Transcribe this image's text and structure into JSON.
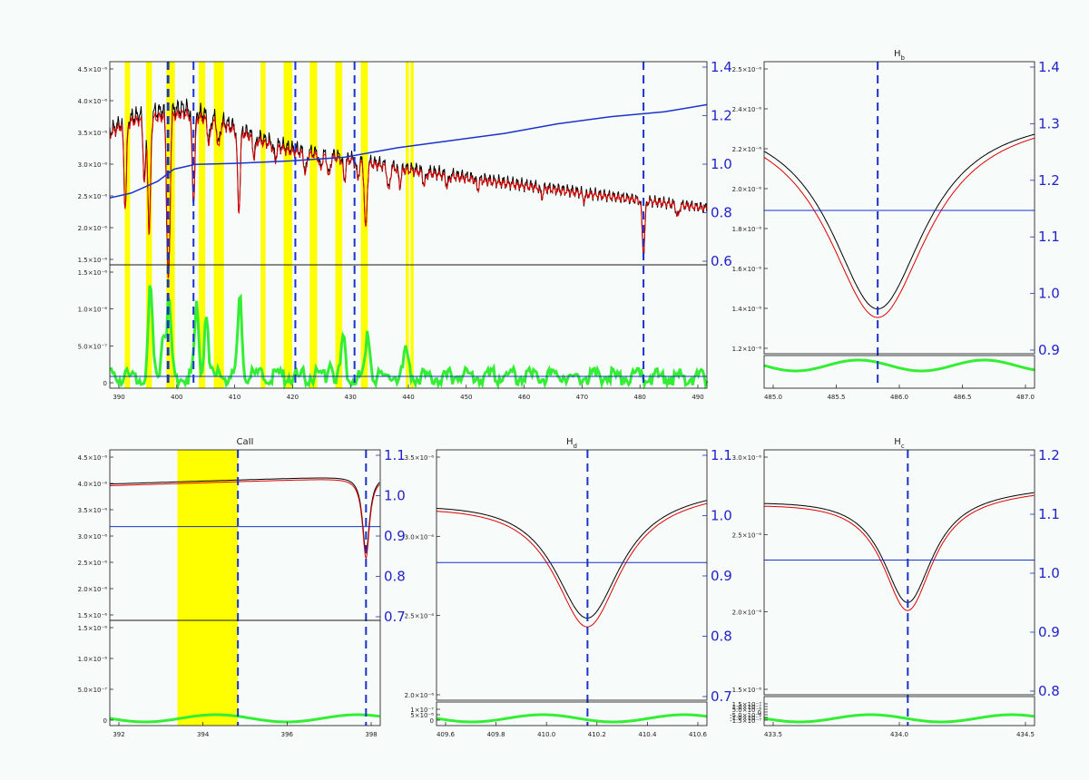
{
  "colors": {
    "observed": "#000000",
    "model": "#e00000",
    "ratio": "#1a33cc",
    "residual": "#33ee33",
    "mask": "#ffff00",
    "line_marker": "#1a33cc"
  },
  "chart_data": [
    {
      "id": "full",
      "type": "line",
      "title": "",
      "xlim": [
        386,
        498
      ],
      "ylim_top": [
        1.2e-06,
        4.7e-06
      ],
      "ylim_right": [
        0.55,
        1.4
      ],
      "ylim_bottom": [
        -2e-07,
        1.9e-06
      ],
      "x_ticks": [
        "390",
        "400",
        "410",
        "420",
        "430",
        "440",
        "450",
        "460",
        "470",
        "480",
        "490"
      ],
      "y_ticks_top": [
        "1.5×10⁻⁶",
        "2.0×10⁻⁶",
        "2.5×10⁻⁶",
        "3.0×10⁻⁶",
        "3.5×10⁻⁶",
        "4.0×10⁻⁶",
        "4.5×10⁻⁶"
      ],
      "y_ticks_bottom": [
        "0",
        "5.0×10⁻⁷",
        "1.0×10⁻⁶",
        "1.5×10⁻⁶"
      ],
      "y_ticks_right": [
        "0.6",
        "0.8",
        "1.0",
        "1.2",
        "1.4"
      ],
      "mask_regions": [
        [
          388.8,
          389.8
        ],
        [
          392.8,
          393.9
        ],
        [
          396.6,
          398.2
        ],
        [
          402.7,
          403.9
        ],
        [
          405.5,
          407.4
        ],
        [
          414.3,
          415.2
        ],
        [
          418.6,
          420.2
        ],
        [
          423.5,
          424.9
        ],
        [
          428.3,
          429.6
        ],
        [
          433.1,
          434.4
        ],
        [
          441.5,
          442.1
        ],
        [
          442.4,
          443.0
        ]
      ],
      "marker_lines": [
        396.85,
        397.0,
        401.7,
        420.8,
        431.9,
        486.1
      ],
      "series": [
        {
          "x": [
            386,
            389,
            392,
            396,
            400,
            405,
            410,
            415,
            420,
            430,
            440,
            450,
            460,
            470,
            480,
            490,
            498
          ],
          "y": [
            3.5e-06,
            3.7e-06,
            3.8e-06,
            3.85e-06,
            3.9e-06,
            3.75e-06,
            3.55e-06,
            3.35e-06,
            3.2e-06,
            3.05e-06,
            2.88e-06,
            2.75e-06,
            2.62e-06,
            2.5e-06,
            2.38e-06,
            2.27e-06,
            2.18e-06
          ]
        },
        {
          "x": [
            386,
            389,
            392,
            396,
            400,
            405,
            410,
            415,
            420,
            430,
            440,
            450,
            460,
            470,
            480,
            490,
            498
          ],
          "y": [
            3.45e-06,
            3.65e-06,
            3.7e-06,
            3.75e-06,
            3.8e-06,
            3.68e-06,
            3.5e-06,
            3.3e-06,
            3.15e-06,
            3.02e-06,
            2.85e-06,
            2.72e-06,
            2.6e-06,
            2.48e-06,
            2.37e-06,
            2.26e-06,
            2.17e-06
          ]
        },
        {
          "x": [
            386,
            390,
            395,
            398,
            402,
            410,
            420,
            430,
            440,
            450,
            460,
            470,
            480,
            490,
            498
          ],
          "y": [
            0.83,
            0.85,
            0.9,
            0.95,
            0.97,
            0.975,
            0.985,
            1.0,
            1.04,
            1.07,
            1.1,
            1.14,
            1.17,
            1.19,
            1.22
          ]
        }
      ],
      "line_depths": [
        [
          388.9,
          0.4
        ],
        [
          392.5,
          0.3
        ],
        [
          393.4,
          0.55
        ],
        [
          396.9,
          0.6
        ],
        [
          397.1,
          0.5
        ],
        [
          401.7,
          0.4
        ],
        [
          404.6,
          0.12
        ],
        [
          406.4,
          0.12
        ],
        [
          410.2,
          0.4
        ],
        [
          413.1,
          0.1
        ],
        [
          417.0,
          0.08
        ],
        [
          422.7,
          0.12
        ],
        [
          425.5,
          0.08
        ],
        [
          427.1,
          0.12
        ],
        [
          430.0,
          0.12
        ],
        [
          432.5,
          0.1
        ],
        [
          434.0,
          0.4
        ],
        [
          438.3,
          0.15
        ],
        [
          440.4,
          0.1
        ],
        [
          445.0,
          0.08
        ],
        [
          449.3,
          0.07
        ],
        [
          455.0,
          0.06
        ],
        [
          467.0,
          0.06
        ],
        [
          475.0,
          0.05
        ],
        [
          486.1,
          0.4
        ],
        [
          492.5,
          0.1
        ]
      ],
      "residual_spikes": [
        [
          393.6,
          1.5e-06
        ],
        [
          396.0,
          8e-07
        ],
        [
          397.1,
          1.3e-06
        ],
        [
          402.3,
          1.2e-06
        ],
        [
          404.1,
          1.1e-06
        ],
        [
          410.4,
          1.3e-06
        ],
        [
          427.3,
          3e-07
        ],
        [
          429.8,
          7e-07
        ],
        [
          434.4,
          7e-07
        ],
        [
          441.5,
          4e-07
        ]
      ]
    },
    {
      "id": "hb",
      "type": "line",
      "title": "H_b",
      "xlim": [
        485.5,
        487.0
      ],
      "ylim_top": [
        1.18e-06,
        2.55e-06
      ],
      "ylim_right": [
        0.88,
        1.42
      ],
      "x_ticks": [
        "485.0",
        "485.5",
        "486.0",
        "486.5",
        "487.0"
      ],
      "y_ticks_top": [
        "1.2×10⁻⁶",
        "1.4×10⁻⁶",
        "1.6×10⁻⁶",
        "1.8×10⁻⁶",
        "2.0×10⁻⁶",
        "2.2×10⁻⁶",
        "2.4×10⁻⁶",
        "2.5×10⁻⁶"
      ],
      "y_ticks_right": [
        "0.9",
        "1.0",
        "1.1",
        "1.2",
        "1.3",
        "1.4"
      ],
      "center": 486.13,
      "observed": {
        "base": 2.32e-06,
        "depth": 9.3e-07,
        "width": 0.32
      },
      "model": {
        "base": 2.32e-06,
        "depth": 9.7e-07,
        "width": 0.34
      },
      "ratio_level": 1.145
    },
    {
      "id": "caii",
      "type": "line",
      "title": "CaII",
      "xlim": [
        389.8,
        397.4
      ],
      "ylim_top": [
        1.45e-06,
        4.6e-06
      ],
      "ylim_right": [
        0.7,
        1.1
      ],
      "ylim_bottom": [
        -2e-07,
        1.8e-06
      ],
      "x_ticks": [
        "392",
        "394",
        "396",
        "398"
      ],
      "y_ticks_top": [
        "1.5×10⁻⁶",
        "2.0×10⁻⁶",
        "2.5×10⁻⁶",
        "3.0×10⁻⁶",
        "3.5×10⁻⁶",
        "4.0×10⁻⁶",
        "4.5×10⁻⁶"
      ],
      "y_ticks_bottom": [
        "0",
        "5.0×10⁻⁷",
        "1.0×10⁻⁶",
        "1.5×10⁻⁶"
      ],
      "y_ticks_right": [
        "0.7",
        "0.8",
        "0.9",
        "1.0",
        "1.1"
      ],
      "mask_regions": [
        [
          391.7,
          393.4
        ]
      ],
      "marker_lines": [
        393.4,
        397.0
      ]
    },
    {
      "id": "hd",
      "type": "line",
      "title": "H_d",
      "xlim": [
        409.5,
        410.7
      ],
      "ylim_top": [
        1.8e-06,
        3.6e-06
      ],
      "ylim_right": [
        0.7,
        1.1
      ],
      "x_ticks": [
        "409.6",
        "409.8",
        "410.0",
        "410.2",
        "410.4",
        "410.6"
      ],
      "y_ticks_top": [
        "2.0×10⁻⁶",
        "2.5×10⁻⁶",
        "3.0×10⁻⁶",
        "3.5×10⁻⁶"
      ],
      "y_ticks_bottom": [
        "0",
        "5×10⁻⁸",
        "1×10⁻⁷"
      ],
      "y_ticks_right": [
        "0.7",
        "0.8",
        "0.9",
        "1.0",
        "1.1"
      ],
      "center": 410.17
    },
    {
      "id": "hc",
      "type": "line",
      "title": "H_c",
      "xlim": [
        433.2,
        434.8
      ],
      "ylim_top": [
        1.8e-06,
        3.2e-06
      ],
      "ylim_right": [
        0.8,
        1.2
      ],
      "x_ticks": [
        "433.5",
        "434.0",
        "434.5"
      ],
      "y_ticks_top": [
        "1.5×10⁻⁶",
        "2.0×10⁻⁶",
        "2.5×10⁻⁶",
        "3.0×10⁻⁶"
      ],
      "y_ticks_bottom": [
        "-1.5×10⁻⁷",
        "-1.0×10⁻⁷",
        "-5.0×10⁻⁸",
        "0",
        "5.0×10⁻⁸",
        "1.0×10⁻⁷",
        "1.5×10⁻⁷"
      ],
      "y_ticks_right": [
        "0.8",
        "0.9",
        "1.0",
        "1.1",
        "1.2"
      ],
      "center": 434.05
    }
  ]
}
